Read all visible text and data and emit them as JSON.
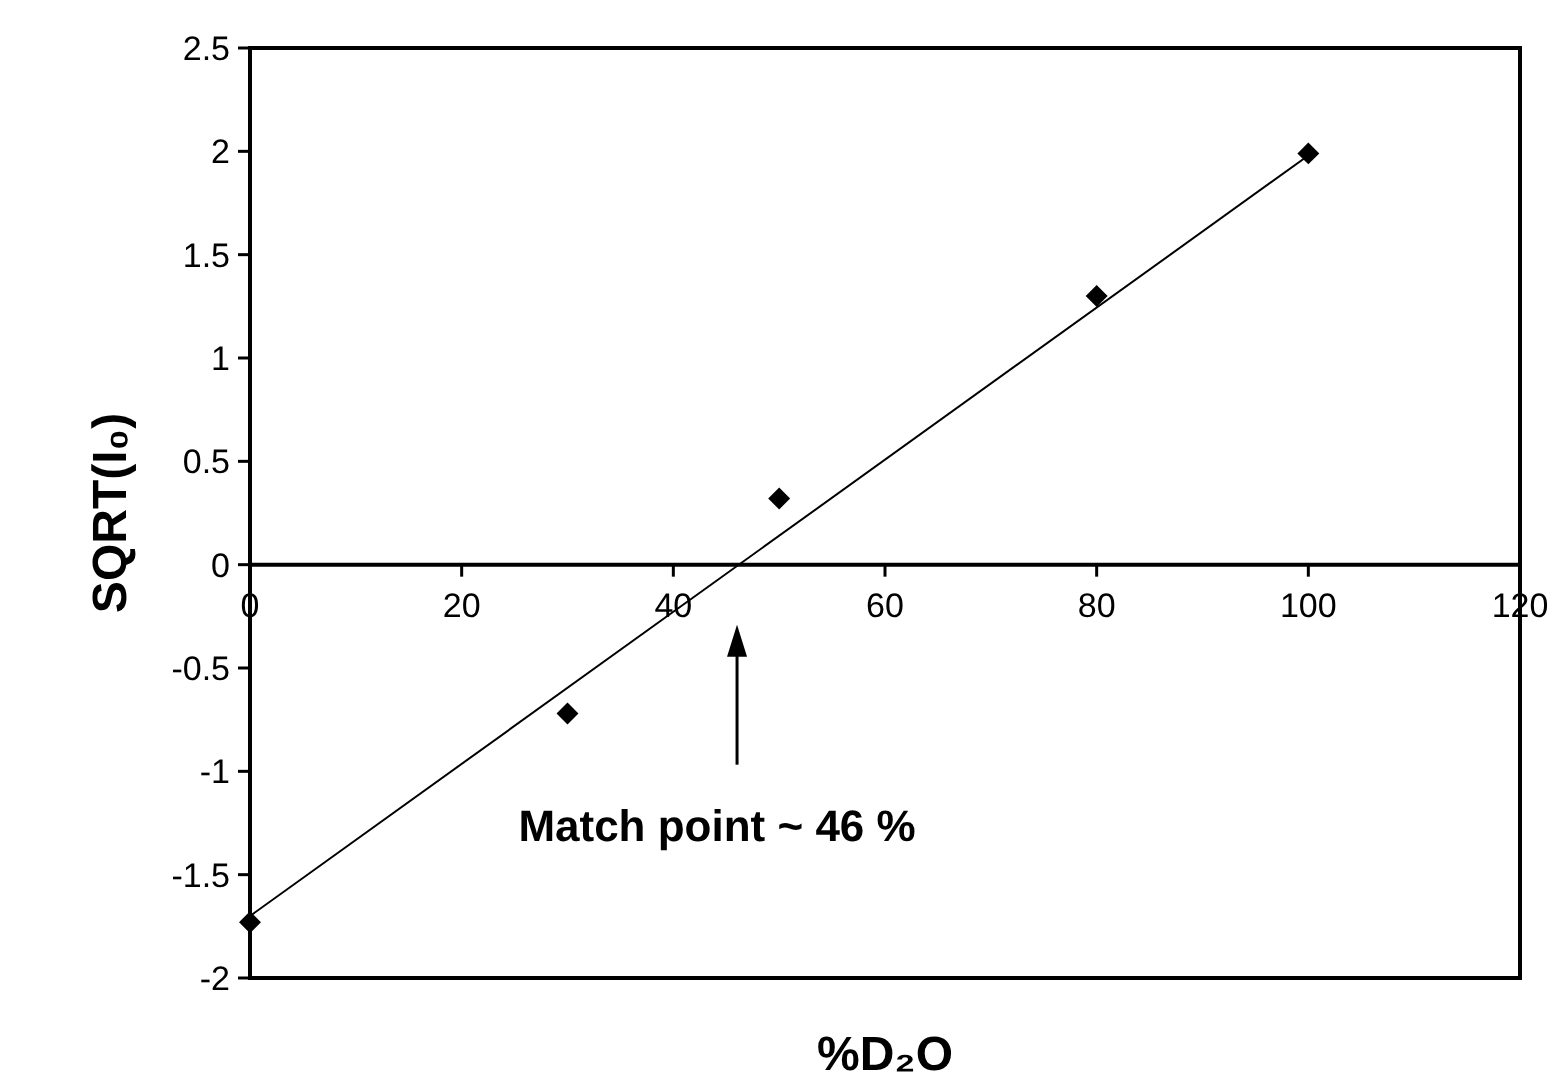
{
  "chart_data": {
    "type": "scatter",
    "xlabel": "%D₂O",
    "ylabel": "SQRT(I₀)",
    "xlim": [
      0,
      120
    ],
    "xticks": [
      0,
      20,
      40,
      60,
      80,
      100,
      120
    ],
    "ylim": [
      -2,
      2.5
    ],
    "yticks": [
      -2,
      -1.5,
      -1,
      -0.5,
      0,
      0.5,
      1,
      1.5,
      2,
      2.5
    ],
    "grid": false,
    "marker": "diamond",
    "series": [
      {
        "color": "#000000",
        "x": [
          0,
          30,
          50,
          80,
          100
        ],
        "values": [
          -1.73,
          -0.72,
          0.32,
          1.3,
          1.99
        ]
      },
      {
        "type": "line",
        "color": "#000000",
        "line_style": "solid",
        "marker": "none",
        "x": [
          0,
          100
        ],
        "values": [
          -1.7,
          1.98
        ]
      }
    ],
    "annotations": [
      "Match point ~ 46 %"
    ]
  }
}
